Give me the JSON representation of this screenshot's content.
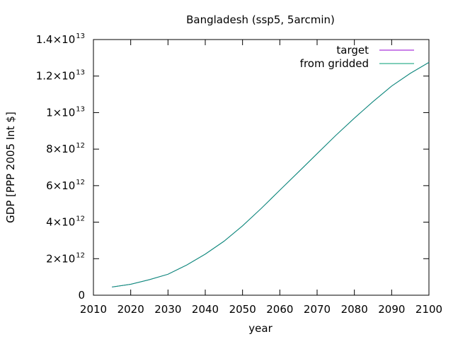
{
  "chart_data": {
    "type": "line",
    "title": "Bangladesh (ssp5, 5arcmin)",
    "xlabel": "year",
    "ylabel": "GDP [PPP 2005 Int $]",
    "xlim": [
      2010,
      2100
    ],
    "ylim": [
      0,
      14000000000000
    ],
    "x_ticks": [
      2010,
      2020,
      2030,
      2040,
      2050,
      2060,
      2070,
      2080,
      2090,
      2100
    ],
    "x_tick_labels": [
      "2010",
      "2020",
      "2030",
      "2040",
      "2050",
      "2060",
      "2070",
      "2080",
      "2090",
      "2100"
    ],
    "y_ticks": [
      {
        "value": 0,
        "mantissa": "0",
        "exponent": ""
      },
      {
        "value": 2000000000000,
        "mantissa": "2×10",
        "exponent": "12"
      },
      {
        "value": 4000000000000,
        "mantissa": "4×10",
        "exponent": "12"
      },
      {
        "value": 6000000000000,
        "mantissa": "6×10",
        "exponent": "12"
      },
      {
        "value": 8000000000000,
        "mantissa": "8×10",
        "exponent": "12"
      },
      {
        "value": 10000000000000,
        "mantissa": "1×10",
        "exponent": "13"
      },
      {
        "value": 12000000000000,
        "mantissa": "1.2×10",
        "exponent": "13"
      },
      {
        "value": 14000000000000,
        "mantissa": "1.4×10",
        "exponent": "13"
      }
    ],
    "legend_position": "top-right",
    "grid": false,
    "series": [
      {
        "name": "target",
        "color": "#9400d3",
        "x": [
          2015,
          2020,
          2025,
          2030,
          2035,
          2040,
          2045,
          2050,
          2055,
          2060,
          2065,
          2070,
          2075,
          2080,
          2085,
          2090,
          2095,
          2100
        ],
        "y": [
          450000000000,
          600000000000,
          850000000000,
          1150000000000,
          1650000000000,
          2250000000000,
          2950000000000,
          3800000000000,
          4750000000000,
          5750000000000,
          6750000000000,
          7750000000000,
          8750000000000,
          9700000000000,
          10600000000000,
          11450000000000,
          12150000000000,
          12750000000000
        ]
      },
      {
        "name": "from gridded",
        "color": "#009e73",
        "x": [
          2015,
          2020,
          2025,
          2030,
          2035,
          2040,
          2045,
          2050,
          2055,
          2060,
          2065,
          2070,
          2075,
          2080,
          2085,
          2090,
          2095,
          2100
        ],
        "y": [
          450000000000,
          600000000000,
          850000000000,
          1150000000000,
          1650000000000,
          2250000000000,
          2950000000000,
          3800000000000,
          4750000000000,
          5750000000000,
          6750000000000,
          7750000000000,
          8750000000000,
          9700000000000,
          10600000000000,
          11450000000000,
          12150000000000,
          12750000000000
        ]
      }
    ]
  }
}
